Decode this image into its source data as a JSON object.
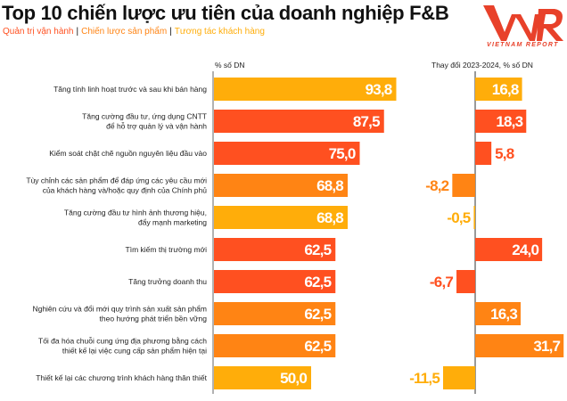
{
  "title": "Top 10 chiến lược ưu tiên của doanh nghiệp F&B",
  "legend": [
    {
      "label": "Quản trị vận hành",
      "color": "#FF5020"
    },
    {
      "label": "Chiến lược sản phẩm",
      "color": "#FF8414"
    },
    {
      "label": "Tương tác khách hàng",
      "color": "#FFAD0A"
    }
  ],
  "logo": {
    "mark": "VNR",
    "text": "VIETNAM REPORT",
    "color": "#E8412A"
  },
  "chart_data": [
    {
      "type": "bar",
      "orientation": "horizontal",
      "title": "% số DN",
      "categories": [
        "Tăng tính linh hoạt trước và sau khi bán hàng",
        "Tăng cường đầu tư, ứng dụng CNTT\nđể hỗ trợ quản lý và vận hành",
        "Kiểm soát chặt chẽ nguồn nguyên liệu đầu vào",
        "Tùy chỉnh các sản phẩm để đáp ứng các yêu cầu mới\ncủa khách hàng và/hoặc quy định của Chính phủ",
        "Tăng cường đầu tư hình ảnh thương hiệu,\nđẩy mạnh marketing",
        "Tìm kiếm thị trường mới",
        "Tăng trưởng doanh thu",
        "Nghiên cứu và đổi mới quy trình sản xuất sản phẩm\ntheo hướng phát triển bền vững",
        "Tối đa hóa chuỗi cung ứng địa phương bằng cách\nthiết kế lại việc cung cấp sản phẩm hiện tại",
        "Thiết kế lại các chương trình khách hàng thân thiết"
      ],
      "groups": [
        "Tương tác khách hàng",
        "Quản trị vận hành",
        "Quản trị vận hành",
        "Chiến lược sản phẩm",
        "Tương tác khách hàng",
        "Quản trị vận hành",
        "Quản trị vận hành",
        "Chiến lược sản phẩm",
        "Chiến lược sản phẩm",
        "Tương tác khách hàng"
      ],
      "values": [
        93.8,
        87.5,
        75.0,
        68.8,
        68.8,
        62.5,
        62.5,
        62.5,
        62.5,
        50.0
      ],
      "labels": [
        "93,8",
        "87,5",
        "75,0",
        "68,8",
        "68,8",
        "62,5",
        "62,5",
        "62,5",
        "62,5",
        "50,0"
      ],
      "xlim": [
        0,
        100
      ],
      "grid": false
    },
    {
      "type": "bar",
      "orientation": "horizontal",
      "title": "Thay đổi 2023-2024, % số DN",
      "values": [
        16.8,
        18.3,
        5.8,
        -8.2,
        -0.5,
        24.0,
        -6.7,
        16.3,
        31.7,
        -11.5
      ],
      "labels": [
        "16,8",
        "18,3",
        "5,8",
        "-8,2",
        "-0,5",
        "24,0",
        "-6,7",
        "16,3",
        "31,7",
        "-11,5"
      ],
      "xlim": [
        -15,
        32
      ],
      "grid": false
    }
  ]
}
